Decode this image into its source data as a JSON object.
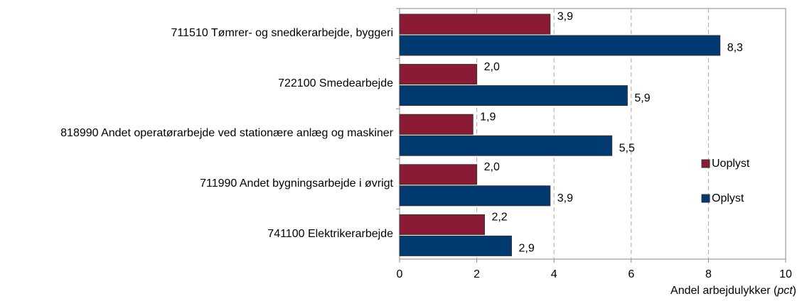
{
  "chart_data": {
    "type": "bar",
    "orientation": "horizontal",
    "categories": [
      "711510 Tømrer- og snedkerarbejde, byggeri",
      "722100 Smedearbejde",
      "818990 Andet operatørarbejde ved stationære anlæg og maskiner",
      "711990 Andet bygningsarbejde i øvrigt",
      "741100 Elektrikerarbejde"
    ],
    "series": [
      {
        "name": "Uoplyst",
        "color": "#8b1a35",
        "values": [
          3.9,
          2.0,
          1.9,
          2.0,
          2.2
        ],
        "value_labels": [
          "3,9",
          "2,0",
          "1,9",
          "2,0",
          "2,2"
        ]
      },
      {
        "name": "Oplyst",
        "color": "#003a70",
        "values": [
          8.3,
          5.9,
          5.5,
          3.9,
          2.9
        ],
        "value_labels": [
          "8,3",
          "5,9",
          "5,5",
          "3,9",
          "2,9"
        ]
      }
    ],
    "xlabel_parts": [
      "Andel arbejdulykker (",
      "pct",
      ")"
    ],
    "xlim": [
      0,
      10
    ],
    "xticks": [
      0,
      2,
      4,
      6,
      8,
      10
    ],
    "grid": true,
    "legend": "right"
  }
}
